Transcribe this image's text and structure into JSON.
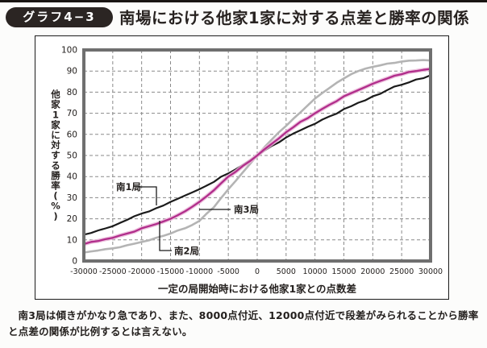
{
  "page": {
    "badge": "グラフ4−3",
    "title": "南場における他家1家に対する点差と勝率の関係",
    "caption": "南3局は傾きがかなり急であり、また、8000点付近、12000点付近で段差がみられることから勝率と点差の関係が比例するとは言えない。"
  },
  "chart_data": {
    "type": "line",
    "title": "",
    "xlabel": "一定の局開始時における他家1家との点数差",
    "ylabel": "他家1家に対する勝率(%)",
    "xlim": [
      -30000,
      30000
    ],
    "ylim": [
      0,
      100
    ],
    "x_ticks": [
      -30000,
      -25000,
      -20000,
      -15000,
      -10000,
      -5000,
      0,
      5000,
      10000,
      15000,
      20000,
      25000,
      30000
    ],
    "y_ticks": [
      0,
      10,
      20,
      30,
      40,
      50,
      60,
      70,
      80,
      90,
      100
    ],
    "grid": "dashed-both-axes",
    "legend_position": "inline-annotations",
    "x": [
      -30000,
      -27500,
      -25000,
      -22500,
      -20000,
      -17500,
      -15000,
      -12500,
      -10000,
      -7500,
      -5000,
      -2500,
      0,
      2500,
      5000,
      7500,
      10000,
      12500,
      15000,
      17500,
      20000,
      22500,
      25000,
      27500,
      30000
    ],
    "series": [
      {
        "name": "南1局",
        "color": "#1b1b1b",
        "values": [
          12.5,
          14.5,
          16.5,
          19.5,
          22.5,
          25,
          28,
          31,
          34,
          37.5,
          41.5,
          45.5,
          50,
          54.5,
          58.5,
          62,
          65,
          68.5,
          72,
          75,
          78,
          81,
          83.5,
          86,
          88
        ]
      },
      {
        "name": "南2局",
        "color": "#b12d8b",
        "halo_color": "#eab7d8",
        "values": [
          8,
          9.5,
          11,
          13,
          15.5,
          17.5,
          20,
          23.5,
          28,
          33.5,
          40,
          45,
          50,
          55.5,
          61,
          66,
          70,
          74,
          78,
          81,
          84,
          86.5,
          88.5,
          90,
          91
        ]
      },
      {
        "name": "南3局",
        "color": "#b4b4b4",
        "values": [
          4,
          5,
          6,
          7.5,
          9,
          11,
          13,
          15.5,
          19,
          25.5,
          34,
          42,
          50,
          57.5,
          64,
          70.5,
          77,
          82,
          86.5,
          90,
          92,
          93.5,
          94.5,
          95,
          95
        ]
      }
    ]
  },
  "colors": {
    "badge_bg": "#2b2523",
    "frame_border": "#1c1c1c",
    "plot_border": "#6f6f6f",
    "gridline": "#8a8a8a",
    "series_south1": "#1b1b1b",
    "series_south2": "#b12d8b",
    "series_south3": "#b4b4b4"
  }
}
